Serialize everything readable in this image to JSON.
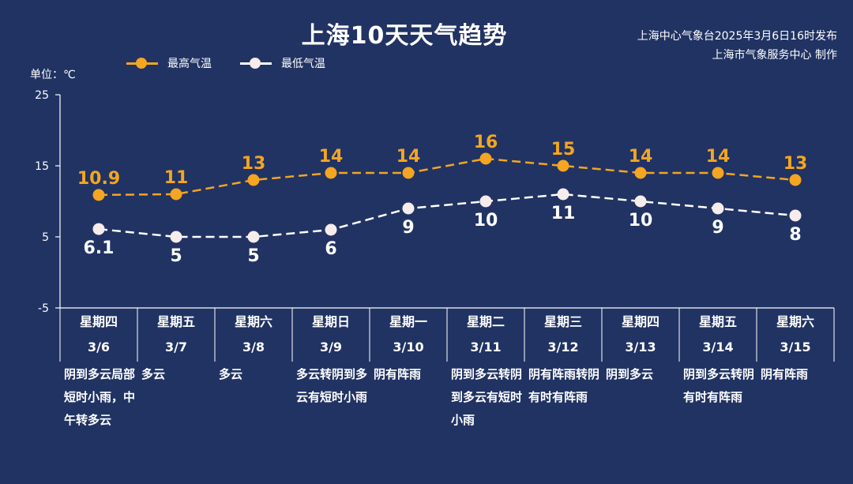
{
  "title": "上海10天天气趋势",
  "source": {
    "line1": "上海中心气象台2025年3月6日16时发布",
    "line2": "上海市气象服务中心 制作"
  },
  "unit_label": "单位：℃",
  "legend": {
    "high": "最高气温",
    "low": "最低气温"
  },
  "colors": {
    "background": "#213363",
    "high": "#f4a521",
    "low": "#ffffff",
    "low_dot": "#f7ecec"
  },
  "chart_data": {
    "type": "line",
    "y_ticks": [
      25,
      15,
      5,
      -5
    ],
    "ylim": [
      -5,
      25
    ],
    "categories": [
      "3/6",
      "3/7",
      "3/8",
      "3/9",
      "3/10",
      "3/11",
      "3/12",
      "3/13",
      "3/14",
      "3/15"
    ],
    "series": [
      {
        "name": "最高气温",
        "values": [
          10.9,
          11,
          13,
          14,
          14,
          16,
          15,
          14,
          14,
          13
        ],
        "labels": [
          "10.9",
          "11",
          "13",
          "14",
          "14",
          "16",
          "15",
          "14",
          "14",
          "13"
        ]
      },
      {
        "name": "最低气温",
        "values": [
          6.1,
          5,
          5,
          6,
          9,
          10,
          11,
          10,
          9,
          8
        ],
        "labels": [
          "6.1",
          "5",
          "5",
          "6",
          "9",
          "10",
          "11",
          "10",
          "9",
          "8"
        ]
      }
    ]
  },
  "days": [
    {
      "week": "星期四",
      "date": "3/6",
      "weather": "阴到多云局部短时小雨，中午转多云"
    },
    {
      "week": "星期五",
      "date": "3/7",
      "weather": "多云"
    },
    {
      "week": "星期六",
      "date": "3/8",
      "weather": "多云"
    },
    {
      "week": "星期日",
      "date": "3/9",
      "weather": "多云转阴到多云有短时小雨"
    },
    {
      "week": "星期一",
      "date": "3/10",
      "weather": "阴有阵雨"
    },
    {
      "week": "星期二",
      "date": "3/11",
      "weather": "阴到多云转阴到多云有短时小雨"
    },
    {
      "week": "星期三",
      "date": "3/12",
      "weather": "阴有阵雨转阴有时有阵雨"
    },
    {
      "week": "星期四",
      "date": "3/13",
      "weather": "阴到多云"
    },
    {
      "week": "星期五",
      "date": "3/14",
      "weather": "阴到多云转阴有时有阵雨"
    },
    {
      "week": "星期六",
      "date": "3/15",
      "weather": "阴有阵雨"
    }
  ]
}
